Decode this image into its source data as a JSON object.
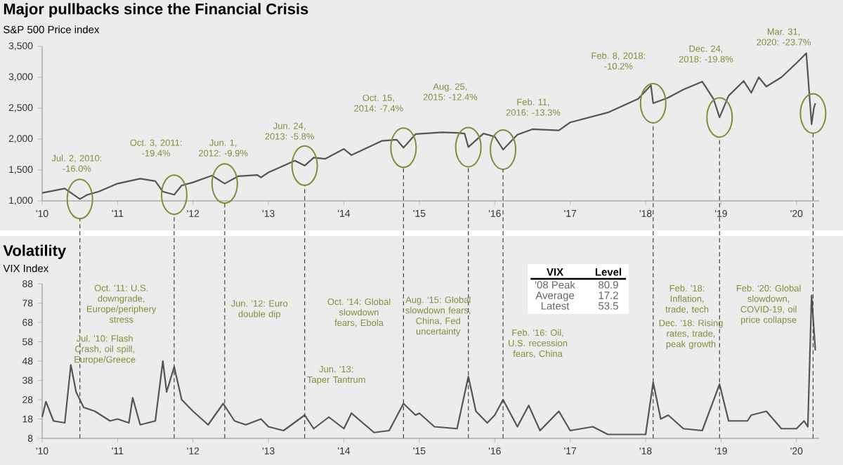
{
  "chart_data": [
    {
      "type": "line",
      "title": "Major pullbacks since the Financial Crisis",
      "subtitle": "S&P 500 Price index",
      "color": "#555555",
      "x": [
        2010.0,
        2010.3,
        2010.5,
        2010.6,
        2010.75,
        2011.0,
        2011.3,
        2011.5,
        2011.6,
        2011.75,
        2011.85,
        2012.0,
        2012.25,
        2012.42,
        2012.6,
        2012.85,
        2012.9,
        2013.0,
        2013.35,
        2013.48,
        2013.6,
        2013.75,
        2014.0,
        2014.1,
        2014.5,
        2014.7,
        2014.79,
        2014.95,
        2015.3,
        2015.5,
        2015.6,
        2015.65,
        2015.85,
        2016.0,
        2016.11,
        2016.3,
        2016.5,
        2016.85,
        2017.0,
        2017.5,
        2017.9,
        2018.07,
        2018.1,
        2018.3,
        2018.5,
        2018.75,
        2018.9,
        2018.98,
        2019.1,
        2019.3,
        2019.4,
        2019.5,
        2019.6,
        2019.8,
        2020.0,
        2020.13,
        2020.2,
        2020.23,
        2020.25
      ],
      "values": [
        1130,
        1200,
        1030,
        1100,
        1150,
        1280,
        1360,
        1320,
        1150,
        1100,
        1250,
        1300,
        1410,
        1280,
        1400,
        1420,
        1380,
        1460,
        1650,
        1570,
        1700,
        1680,
        1840,
        1740,
        1970,
        1990,
        1860,
        2080,
        2110,
        2100,
        2090,
        1870,
        2090,
        2040,
        1830,
        2070,
        2160,
        2140,
        2270,
        2430,
        2650,
        2870,
        2580,
        2670,
        2800,
        2930,
        2650,
        2350,
        2700,
        2940,
        2750,
        3000,
        2850,
        3000,
        3230,
        3390,
        2240,
        2500,
        2580
      ],
      "xlim": [
        2010,
        2020.3
      ],
      "xticks": [
        {
          "value": 2010,
          "label": "'10"
        },
        {
          "value": 2011,
          "label": "'11"
        },
        {
          "value": 2012,
          "label": "'12"
        },
        {
          "value": 2013,
          "label": "'13"
        },
        {
          "value": 2014,
          "label": "'14"
        },
        {
          "value": 2015,
          "label": "'15"
        },
        {
          "value": 2016,
          "label": "'16"
        },
        {
          "value": 2017,
          "label": "'17"
        },
        {
          "value": 2018,
          "label": "'18"
        },
        {
          "value": 2019,
          "label": "'19"
        },
        {
          "value": 2020,
          "label": "'20"
        }
      ],
      "ylim": [
        1000,
        3500
      ],
      "yticks": [
        {
          "value": 1000,
          "label": "1,000"
        },
        {
          "value": 1500,
          "label": "1,500"
        },
        {
          "value": 2000,
          "label": "2,000"
        },
        {
          "value": 2500,
          "label": "2,500"
        },
        {
          "value": 3000,
          "label": "3,000"
        },
        {
          "value": 3500,
          "label": "3,500"
        }
      ],
      "annotations": [
        "Jul. 2, 2010: -16.0%",
        "Oct. 3, 2011: -19.4%",
        "Jun. 1, 2012: -9.9%",
        "Jun. 24, 2013: -5.8%",
        "Oct. 15, 2014: -7.4%",
        "Aug. 25, 2015: -12.4%",
        "Feb. 11, 2016: -13.3%",
        "Feb. 8, 2018: -10.2%",
        "Dec. 24, 2018: -19.8%",
        "Mar. 31, 2020: -23.7%"
      ]
    },
    {
      "type": "line",
      "title": "Volatility",
      "subtitle": "VIX Index",
      "color": "#555555",
      "x": [
        2010.0,
        2010.05,
        2010.15,
        2010.3,
        2010.38,
        2010.45,
        2010.55,
        2010.7,
        2010.9,
        2011.0,
        2011.15,
        2011.2,
        2011.3,
        2011.5,
        2011.6,
        2011.65,
        2011.75,
        2011.85,
        2012.0,
        2012.2,
        2012.4,
        2012.55,
        2012.7,
        2012.9,
        2013.0,
        2013.2,
        2013.48,
        2013.6,
        2013.8,
        2014.0,
        2014.1,
        2014.4,
        2014.6,
        2014.79,
        2014.95,
        2015.0,
        2015.2,
        2015.5,
        2015.65,
        2015.75,
        2015.9,
        2016.0,
        2016.11,
        2016.3,
        2016.45,
        2016.6,
        2016.85,
        2017.0,
        2017.3,
        2017.5,
        2017.75,
        2018.0,
        2018.1,
        2018.2,
        2018.3,
        2018.5,
        2018.75,
        2018.98,
        2019.1,
        2019.35,
        2019.4,
        2019.6,
        2019.8,
        2020.0,
        2020.1,
        2020.15,
        2020.2,
        2020.25
      ],
      "values": [
        19,
        27,
        17,
        16,
        46,
        32,
        24,
        22,
        17,
        18,
        16,
        29,
        15,
        17,
        48,
        32,
        45,
        28,
        22,
        15,
        26,
        17,
        15,
        18,
        14,
        12,
        20,
        13,
        19,
        13,
        21,
        11,
        12,
        26,
        20,
        21,
        14,
        13,
        40,
        22,
        16,
        20,
        28,
        14,
        25,
        12,
        22,
        12,
        14,
        10,
        10,
        10,
        37,
        18,
        20,
        13,
        12,
        36,
        17,
        17,
        20,
        22,
        13,
        13,
        17,
        14,
        82,
        53.5
      ],
      "xlim": [
        2010,
        2020.3
      ],
      "xticks": [
        {
          "value": 2010,
          "label": "'10"
        },
        {
          "value": 2011,
          "label": "'11"
        },
        {
          "value": 2012,
          "label": "'12"
        },
        {
          "value": 2013,
          "label": "'13"
        },
        {
          "value": 2014,
          "label": "'14"
        },
        {
          "value": 2015,
          "label": "'15"
        },
        {
          "value": 2016,
          "label": "'16"
        },
        {
          "value": 2017,
          "label": "'17"
        },
        {
          "value": 2018,
          "label": "'18"
        },
        {
          "value": 2019,
          "label": "'19"
        },
        {
          "value": 2020,
          "label": "'20"
        }
      ],
      "ylim": [
        8,
        88
      ],
      "yticks": [
        8,
        18,
        28,
        38,
        48,
        58,
        68,
        78,
        88
      ],
      "annotations": [
        "Jul. '10: Flash Crash, oil spill, Europe/Greece",
        "Oct. '11: U.S. downgrade, Europe/periphery stress",
        "Jun. '12: Euro double dip",
        "Jun. '13: Taper Tantrum",
        "Oct. '14: Global slowdown fears, Ebola",
        "Aug. '15: Global slowdown fears, China, Fed uncertainty",
        "Feb. '16: Oil, U.S. recession fears, China",
        "Feb. '18: Inflation, trade, tech",
        "Dec. '18: Rising rates, trade, peak growth",
        "Feb. '20: Global slowdown, COVID-19, oil price collapse",
        "VIX",
        "Level",
        "'08 Peak",
        "80.9",
        "Average",
        "17.2",
        "Latest",
        "53.5"
      ],
      "ref_lines": [
        {
          "axis": "x",
          "value": 2010.5,
          "color": "#444444",
          "line_style": "dashed"
        },
        {
          "axis": "x",
          "value": 2011.75,
          "color": "#444444",
          "line_style": "dashed"
        },
        {
          "axis": "x",
          "value": 2012.42,
          "color": "#444444",
          "line_style": "dashed"
        },
        {
          "axis": "x",
          "value": 2013.48,
          "color": "#444444",
          "line_style": "dashed"
        },
        {
          "axis": "x",
          "value": 2014.79,
          "color": "#444444",
          "line_style": "dashed"
        },
        {
          "axis": "x",
          "value": 2015.65,
          "color": "#444444",
          "line_style": "dashed"
        },
        {
          "axis": "x",
          "value": 2016.11,
          "color": "#444444",
          "line_style": "dashed"
        },
        {
          "axis": "x",
          "value": 2018.1,
          "color": "#444444",
          "line_style": "dashed"
        },
        {
          "axis": "x",
          "value": 2018.98,
          "color": "#444444",
          "line_style": "dashed"
        },
        {
          "axis": "x",
          "value": 2020.22,
          "color": "#444444",
          "line_style": "dashed"
        }
      ]
    }
  ]
}
